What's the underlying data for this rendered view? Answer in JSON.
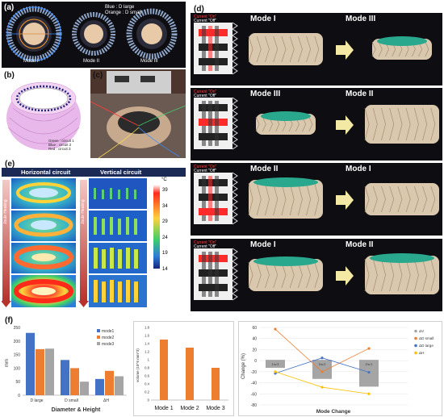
{
  "panel_a": {
    "label": "(a)",
    "legend_blue": "Blue : D large",
    "legend_orange": "Orange : D small",
    "modes": [
      "Mode I",
      "Mode II",
      "Mode III"
    ]
  },
  "panel_b": {
    "label": "(b)",
    "legend": [
      "Green : circuit 1",
      "Blue : circuit 2",
      "Red : circuit 3"
    ]
  },
  "panel_c": {
    "label": "(c)"
  },
  "panel_d": {
    "label": "(d)",
    "current_on": "Current \"On\"",
    "current_off": "Current \"Off\"",
    "rows": [
      {
        "left": "Mode I",
        "right": "Mode III"
      },
      {
        "left": "Mode III",
        "right": "Mode II"
      },
      {
        "left": "Mode II",
        "right": "Mode I"
      },
      {
        "left": "Mode I",
        "right": "Mode II"
      }
    ]
  },
  "panel_e": {
    "label": "(e)",
    "col1": "Horizontal circuit",
    "col2": "Vertical circuit",
    "side_label": "Joule Heating",
    "unit": "°C",
    "ticks": [
      "39",
      "34",
      "29",
      "24",
      "19",
      "14"
    ]
  },
  "panel_f": {
    "label": "(f)"
  },
  "chart_data": [
    {
      "type": "bar",
      "categories": [
        "D large",
        "D small",
        "ΔH"
      ],
      "series": [
        {
          "name": "mode1",
          "values": [
            230,
            130,
            60
          ]
        },
        {
          "name": "mode2",
          "values": [
            170,
            100,
            90
          ]
        },
        {
          "name": "mode3",
          "values": [
            172,
            50,
            70
          ]
        }
      ],
      "xlabel": "Diameter & Height",
      "ylabel": "mm",
      "ylim": [
        0,
        250
      ],
      "yticks": [
        "0",
        "50",
        "100",
        "150",
        "200",
        "250"
      ],
      "colors": [
        "#4472c4",
        "#ed7d31",
        "#a5a5a5"
      ],
      "legend": "top-right"
    },
    {
      "type": "bar",
      "categories": [
        "Mode 1",
        "Mode 2",
        "Mode 3"
      ],
      "values": [
        1.5,
        1.3,
        0.8
      ],
      "ylabel": "volume (10^6 mm^3)",
      "ylim": [
        0,
        1.8
      ],
      "yticks": [
        "0",
        "0.2",
        "0.4",
        "0.6",
        "0.8",
        "1",
        "1.2",
        "1.4",
        "1.6",
        "1.8"
      ],
      "color": "#ed7d31"
    },
    {
      "type": "line",
      "categories": [
        "",
        "",
        "",
        ""
      ],
      "series": [
        {
          "name": "ΔV",
          "values": [
            -13,
            -33,
            -47,
            0
          ]
        },
        {
          "name": "ΔD small",
          "values": [
            57,
            -20,
            22,
            0
          ]
        },
        {
          "name": "ΔD large",
          "values": [
            -23,
            5,
            -21,
            0
          ]
        },
        {
          "name": "ΔH",
          "values": [
            -20,
            -48,
            -60,
            0
          ]
        }
      ],
      "box_labels": [
        "1 to 3",
        "3 to 2",
        "2 to 1"
      ],
      "xlabel": "Mode Change",
      "ylabel": "Change (%)",
      "ylim": [
        -80,
        60
      ],
      "yticks": [
        "60",
        "40",
        "20",
        "0",
        "-20",
        "-40",
        "-60",
        "-80"
      ],
      "colors": [
        "#a5a5a5",
        "#ed7d31",
        "#4472c4",
        "#ffc000"
      ]
    }
  ]
}
